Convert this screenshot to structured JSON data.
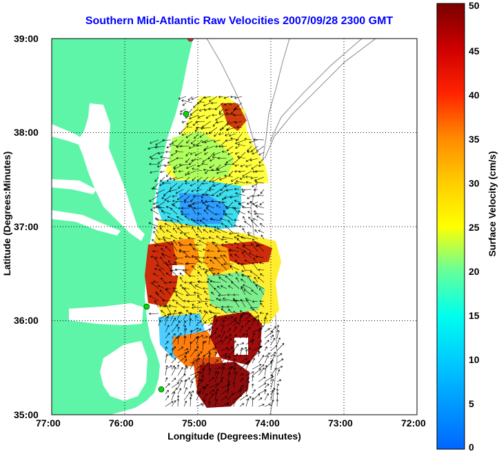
{
  "title": "Southern Mid-Atlantic Raw Velocities 2007/09/28 2300 GMT",
  "xlabel": "Longitude (Degrees:Minutes)",
  "ylabel": "Latitude (Degrees:Minutes)",
  "colorbar": {
    "label": "Surface Velocity (cm/s)",
    "ticks": [
      "0",
      "5",
      "10",
      "15",
      "20",
      "25",
      "30",
      "35",
      "40",
      "45",
      "50"
    ],
    "min": 0,
    "max": 50
  },
  "x_ticks": [
    "77:00",
    "76:00",
    "75:00",
    "74:00",
    "73:00",
    "72:00"
  ],
  "y_ticks": [
    "39:00",
    "38:00",
    "37:00",
    "36:00",
    "35:00"
  ],
  "colors": {
    "land": "#5ef5a8",
    "water": "#ffffff",
    "title": "#0000ff",
    "contour": "#999999"
  },
  "map": {
    "lon_range": [
      -77,
      -72
    ],
    "lat_range": [
      35,
      39
    ],
    "grid": "dotted",
    "stations": [
      {
        "lon": -75.1,
        "lat": 39.0,
        "color": "#ff2020"
      },
      {
        "lon": -75.16,
        "lat": 38.2,
        "color": "#00dd00"
      },
      {
        "lon": -75.7,
        "lat": 36.15,
        "color": "#00dd00"
      },
      {
        "lon": -75.5,
        "lat": 35.27,
        "color": "#00dd00"
      }
    ]
  }
}
